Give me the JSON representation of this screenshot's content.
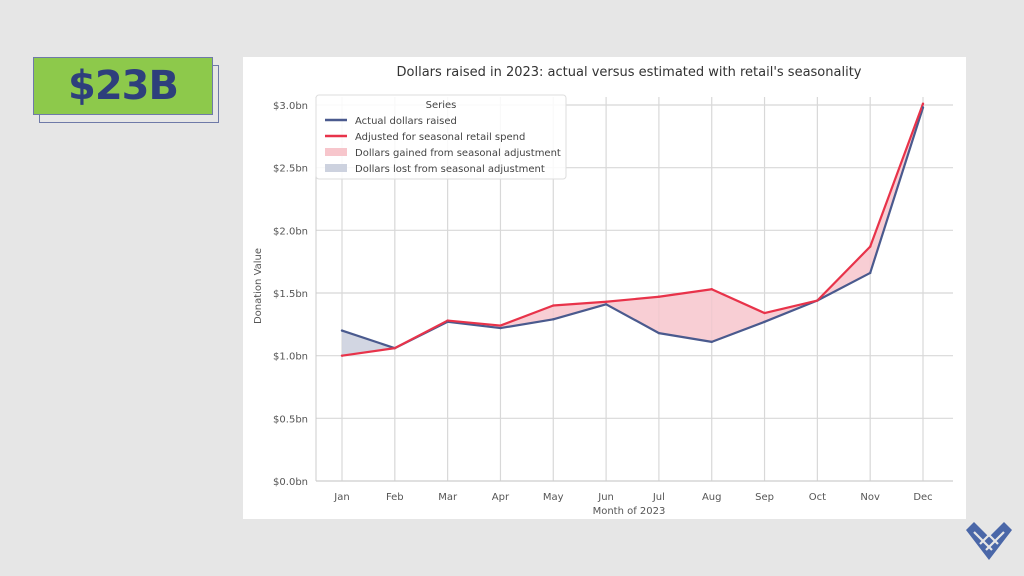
{
  "badge": {
    "text": "$23B"
  },
  "colors": {
    "actual": "#4a5a8e",
    "adjusted": "#e8334a",
    "gain_fill": "#f7c6cc",
    "loss_fill": "#cdd2df",
    "badge_bg": "#8dc94b",
    "badge_text": "#2e3f7c",
    "logo": "#4a67a8"
  },
  "chart_data": {
    "type": "line",
    "title": "Dollars raised in 2023: actual versus estimated with retail's seasonality",
    "xlabel": "Month of 2023",
    "ylabel": "Donation Value",
    "categories": [
      "Jan",
      "Feb",
      "Mar",
      "Apr",
      "May",
      "Jun",
      "Jul",
      "Aug",
      "Sep",
      "Oct",
      "Nov",
      "Dec"
    ],
    "ylim": [
      0,
      3.0
    ],
    "yticks": [
      0,
      0.5,
      1.0,
      1.5,
      2.0,
      2.5,
      3.0
    ],
    "ytick_labels": [
      "$0.0bn",
      "$0.5bn",
      "$1.0bn",
      "$1.5bn",
      "$2.0bn",
      "$2.5bn",
      "$3.0bn"
    ],
    "grid": true,
    "legend": {
      "title": "Series",
      "position": "top-left",
      "entries": [
        "Actual dollars raised",
        "Adjusted for seasonal retail spend",
        "Dollars gained from seasonal adjustment",
        "Dollars lost from seasonal adjustment"
      ]
    },
    "series": [
      {
        "name": "Actual dollars raised",
        "values": [
          1.2,
          1.06,
          1.27,
          1.22,
          1.29,
          1.41,
          1.18,
          1.11,
          1.27,
          1.44,
          1.66,
          2.98
        ]
      },
      {
        "name": "Adjusted for seasonal retail spend",
        "values": [
          1.0,
          1.06,
          1.28,
          1.24,
          1.4,
          1.43,
          1.47,
          1.53,
          1.34,
          1.44,
          1.87,
          3.01
        ]
      }
    ]
  }
}
